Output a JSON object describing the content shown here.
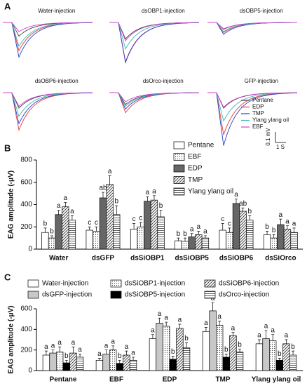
{
  "chart_data": [
    {
      "type": "traces",
      "panel_label": "A",
      "panels": [
        "Water-injection",
        "dsOBP1-injection",
        "dsOBP5-injection",
        "dsOBP6-injection",
        "dsOrco-injection",
        "GFP-injection"
      ],
      "series": [
        {
          "name": "Pentane",
          "color": "#444444"
        },
        {
          "name": "EDP",
          "color": "#e83a3a"
        },
        {
          "name": "TMP",
          "color": "#2f3fc8"
        },
        {
          "name": "Ylang ylang oil",
          "color": "#3fb8b0"
        },
        {
          "name": "EBF",
          "color": "#d040d0"
        }
      ],
      "scale_y": "0.1 mV",
      "scale_x": "1 S"
    },
    {
      "type": "bar",
      "panel_label": "B",
      "ylabel": "EAG amplitude (-μV)",
      "legend_columns": 1,
      "categories": [
        "Water",
        "dsGFP",
        "dsSiOBP1",
        "dsSiOBP5",
        "dsSiOBP6",
        "dsSiOrco"
      ],
      "ylim": [
        0,
        800
      ],
      "yticks": [
        0,
        200,
        400,
        600,
        800
      ],
      "series": [
        {
          "name": "Pentane",
          "color": "#ffffff",
          "values": [
            150,
            170,
            180,
            75,
            170,
            130
          ],
          "errors": [
            40,
            30,
            50,
            25,
            60,
            30
          ],
          "letters": [
            "b",
            "c",
            "c",
            "b",
            "c",
            "b"
          ]
        },
        {
          "name": "EBF",
          "color": "#ffffff",
          "pattern": "dots",
          "values": [
            100,
            160,
            200,
            70,
            150,
            100
          ],
          "errors": [
            20,
            40,
            40,
            30,
            40,
            30
          ],
          "letters": [
            "b",
            "c",
            "c",
            "b",
            "c",
            "b"
          ]
        },
        {
          "name": "EDP",
          "color": "#666666",
          "values": [
            310,
            460,
            430,
            110,
            410,
            220
          ],
          "errors": [
            40,
            50,
            40,
            30,
            40,
            50
          ],
          "letters": [
            "a",
            "ab",
            "a",
            "a",
            "a",
            "a"
          ]
        },
        {
          "name": "TMP",
          "color": "#ffffff",
          "pattern": "hatch",
          "values": [
            380,
            580,
            440,
            130,
            340,
            180
          ],
          "errors": [
            40,
            80,
            40,
            30,
            30,
            30
          ],
          "letters": [
            "a",
            "a",
            "a",
            "a",
            "ab",
            "a"
          ]
        },
        {
          "name": "Ylang ylang oil",
          "color": "#ffffff",
          "pattern": "hlines",
          "values": [
            260,
            310,
            290,
            100,
            260,
            150
          ],
          "errors": [
            40,
            80,
            60,
            20,
            40,
            40
          ],
          "letters": [
            "a",
            "b",
            "b",
            "a",
            "b",
            "a"
          ]
        }
      ]
    },
    {
      "type": "bar",
      "panel_label": "C",
      "ylabel": "EAG amplitude (-μV)",
      "legend_columns": 3,
      "categories": [
        "Pentane",
        "EBF",
        "EDP",
        "TMP",
        "Ylang ylang oil"
      ],
      "ylim": [
        0,
        600
      ],
      "yticks": [
        0,
        200,
        400,
        600
      ],
      "series": [
        {
          "name": "Water-injection",
          "color": "#ffffff",
          "values": [
            150,
            100,
            310,
            380,
            260
          ],
          "errors": [
            40,
            20,
            40,
            40,
            40
          ],
          "letters": [
            "a",
            "a",
            "a",
            "a",
            "a"
          ]
        },
        {
          "name": "dsGFP-injection",
          "color": "#c8c8c8",
          "values": [
            170,
            160,
            460,
            580,
            310
          ],
          "errors": [
            30,
            40,
            50,
            80,
            80
          ],
          "letters": [
            "a",
            "a",
            "a",
            "a",
            "a"
          ]
        },
        {
          "name": "dsSiOBP1-injection",
          "color": "#ffffff",
          "pattern": "dots",
          "values": [
            180,
            200,
            430,
            440,
            290
          ],
          "errors": [
            50,
            40,
            40,
            40,
            60
          ],
          "letters": [
            "a",
            "a",
            "a",
            "a",
            "a"
          ]
        },
        {
          "name": "dsSiOBP5-injection",
          "color": "#000000",
          "values": [
            75,
            70,
            110,
            130,
            100
          ],
          "errors": [
            25,
            30,
            30,
            30,
            20
          ],
          "letters": [
            "b",
            "b",
            "b",
            "b",
            "b"
          ]
        },
        {
          "name": "dsSiOBP6-injection",
          "color": "#ffffff",
          "pattern": "hatch",
          "values": [
            170,
            150,
            410,
            340,
            260
          ],
          "errors": [
            60,
            40,
            40,
            30,
            40
          ],
          "letters": [
            "a",
            "a",
            "a",
            "a",
            "a"
          ]
        },
        {
          "name": "dsOrco-injection",
          "color": "#ffffff",
          "pattern": "hlines",
          "values": [
            130,
            100,
            220,
            180,
            150
          ],
          "errors": [
            30,
            30,
            50,
            30,
            40
          ],
          "letters": [
            "a",
            "a",
            "b",
            "b",
            "b"
          ]
        }
      ]
    }
  ]
}
